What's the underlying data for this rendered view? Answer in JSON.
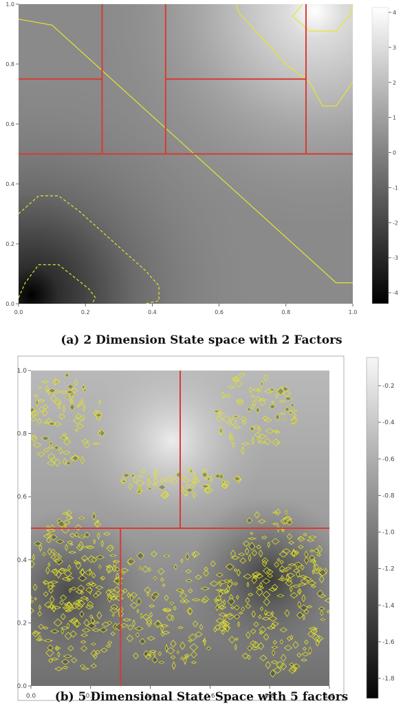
{
  "figure": {
    "caption_a": "(a) 2 Dimension State space with 2 Factors",
    "caption_b": "(b) 5 Dimensional State Space with 5 factors"
  },
  "chart_data": [
    {
      "type": "heatmap",
      "xlim": [
        0,
        1
      ],
      "ylim": [
        0,
        1
      ],
      "x_ticks": [
        "0.0",
        "0.2",
        "0.4",
        "0.6",
        "0.8",
        "1.0"
      ],
      "y_ticks": [
        "0.0",
        "0.2",
        "0.4",
        "0.6",
        "0.8",
        "1.0"
      ],
      "colorbar": {
        "range": [
          -4.3,
          4.2
        ],
        "ticks": [
          "4",
          "3",
          "2",
          "1",
          "0",
          "-1",
          "-2",
          "-3",
          "-4"
        ]
      },
      "colormap": "gray",
      "minimum_near": [
        0.1,
        0.05
      ],
      "maximum_near": [
        0.9,
        0.98
      ],
      "factor_partitions": [
        {
          "x0": 0.0,
          "y0": 0.5,
          "x1": 1.0,
          "y1": 0.5
        },
        {
          "x0": 0.25,
          "y0": 0.5,
          "x1": 0.25,
          "y1": 1.0
        },
        {
          "x0": 0.44,
          "y0": 0.5,
          "x1": 0.44,
          "y1": 1.0
        },
        {
          "x0": 0.86,
          "y0": 0.5,
          "x1": 0.86,
          "y1": 1.0
        },
        {
          "x0": 0.0,
          "y0": 0.75,
          "x1": 0.25,
          "y1": 0.75
        },
        {
          "x0": 0.44,
          "y0": 0.75,
          "x1": 0.86,
          "y1": 0.75
        }
      ],
      "contours": {
        "solid": [
          [
            [
              0.0,
              0.95
            ],
            [
              0.1,
              0.93
            ],
            [
              0.95,
              0.07
            ],
            [
              1.0,
              0.07
            ]
          ],
          [
            [
              0.65,
              1.0
            ],
            [
              0.66,
              0.97
            ],
            [
              0.8,
              0.8
            ],
            [
              0.87,
              0.74
            ],
            [
              0.91,
              0.66
            ],
            [
              0.95,
              0.66
            ],
            [
              1.0,
              0.74
            ]
          ],
          [
            [
              0.85,
              1.0
            ],
            [
              0.82,
              0.96
            ],
            [
              0.87,
              0.91
            ],
            [
              0.95,
              0.91
            ],
            [
              0.99,
              0.96
            ],
            [
              1.0,
              1.0
            ]
          ]
        ],
        "dashed": [
          [
            [
              0.0,
              0.3
            ],
            [
              0.06,
              0.36
            ],
            [
              0.12,
              0.36
            ],
            [
              0.18,
              0.31
            ],
            [
              0.38,
              0.11
            ],
            [
              0.42,
              0.06
            ],
            [
              0.42,
              0.01
            ],
            [
              0.38,
              0.0
            ]
          ],
          [
            [
              0.0,
              0.02
            ],
            [
              0.02,
              0.07
            ],
            [
              0.06,
              0.13
            ],
            [
              0.12,
              0.13
            ],
            [
              0.21,
              0.05
            ],
            [
              0.23,
              0.02
            ],
            [
              0.22,
              0.0
            ]
          ]
        ]
      }
    },
    {
      "type": "heatmap",
      "xlim": [
        0,
        1
      ],
      "ylim": [
        0,
        1
      ],
      "x_ticks": [
        "0.0",
        "0.2",
        "0.4",
        "0.6",
        "0.8",
        "1.0"
      ],
      "y_ticks": [
        "0.0",
        "0.2",
        "0.4",
        "0.6",
        "0.8",
        "1.0"
      ],
      "colorbar": {
        "range": [
          -1.8,
          -0.05
        ],
        "ticks": [
          "-0.2",
          "-0.4",
          "-0.6",
          "-0.8",
          "-1.0",
          "-1.2",
          "-1.4",
          "-1.6",
          "-1.8"
        ]
      },
      "colormap": "gray",
      "factor_partitions": [
        {
          "x0": 0.0,
          "y0": 0.5,
          "x1": 1.0,
          "y1": 0.5
        },
        {
          "x0": 0.5,
          "y0": 0.5,
          "x1": 0.5,
          "y1": 1.0
        },
        {
          "x0": 0.3,
          "y0": 0.0,
          "x1": 0.3,
          "y1": 0.5
        }
      ]
    }
  ]
}
